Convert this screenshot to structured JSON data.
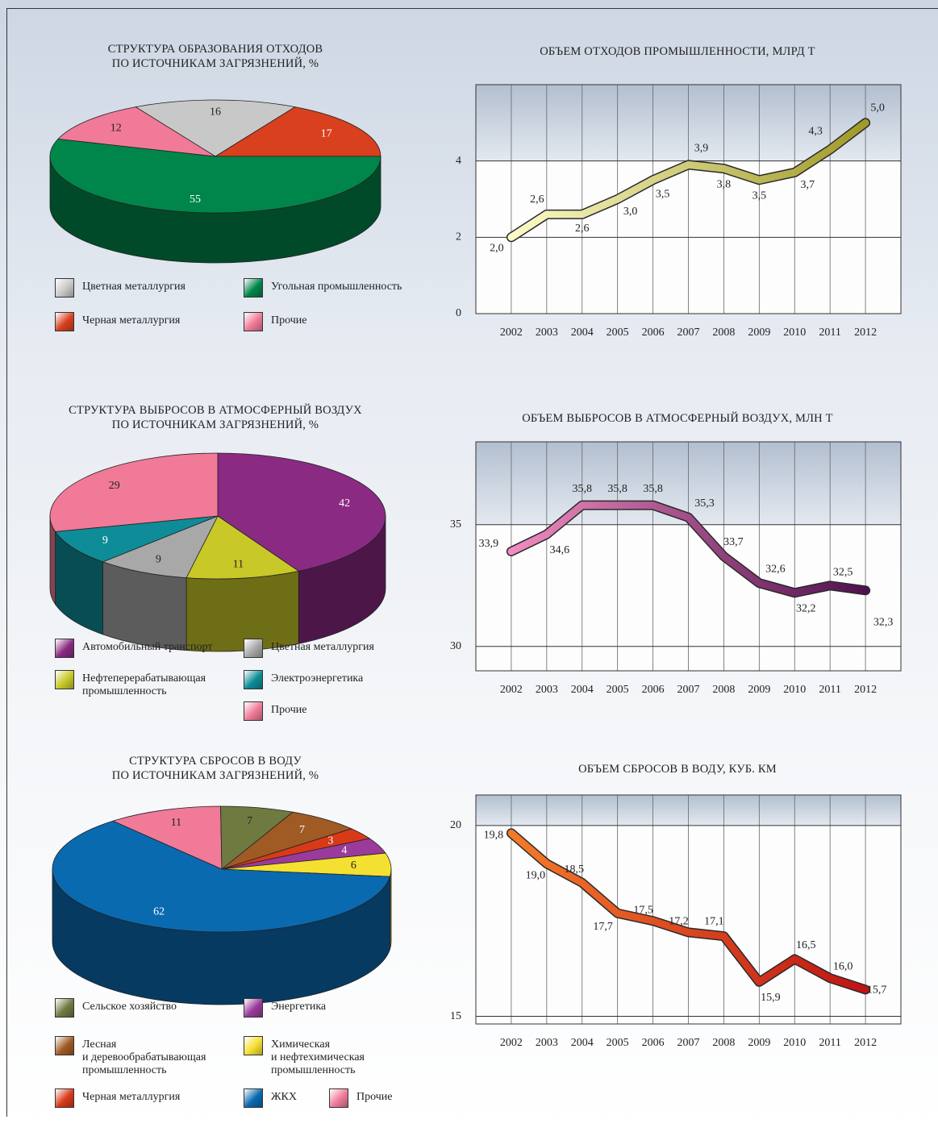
{
  "chart_data": [
    {
      "type": "pie",
      "title": "СТРУКТУРА ОБРАЗОВАНИЯ ОТХОДОВ\nПО ИСТОЧНИКАМ ЗАГРЯЗНЕНИЙ, %",
      "categories": [
        "Цветная металлургия",
        "Черная металлургия",
        "Угольная промышленность",
        "Прочие"
      ],
      "values": [
        16,
        17,
        55,
        12
      ],
      "colors": [
        "#c8c8c8",
        "#d8401e",
        "#00864a",
        "#f07a98"
      ]
    },
    {
      "type": "line",
      "title": "ОБЪЕМ ОТХОДОВ ПРОМЫШЛЕННОСТИ, МЛРД Т",
      "categories": [
        "2002",
        "2003",
        "2004",
        "2005",
        "2006",
        "2007",
        "2008",
        "2009",
        "2010",
        "2011",
        "2012"
      ],
      "values": [
        2.0,
        2.6,
        2.6,
        3.0,
        3.5,
        3.9,
        3.8,
        3.5,
        3.7,
        4.3,
        5.0
      ],
      "value_labels": [
        "2,0",
        "2,6",
        "2,6",
        "3,0",
        "3,5",
        "3,9",
        "3,8",
        "3,5",
        "3,7",
        "4,3",
        "5,0"
      ],
      "line_colors": [
        "#fbfbc8",
        "#a09a28"
      ],
      "ylim": [
        0,
        6
      ],
      "yticks": [
        0,
        2,
        4
      ],
      "grid": true
    },
    {
      "type": "pie",
      "title": "СТРУКТУРА ВЫБРОСОВ В АТМОСФЕРНЫЙ ВОЗДУХ\nПО ИСТОЧНИКАМ ЗАГРЯЗНЕНИЙ, %",
      "categories": [
        "Автомобильный транспорт",
        "Нефтеперерабатывающая\nпромышленность",
        "Цветная металлургия",
        "Электроэнергетика",
        "Прочие"
      ],
      "values": [
        42,
        11,
        9,
        9,
        29
      ],
      "colors": [
        "#8a2a82",
        "#c8c828",
        "#a8a8a8",
        "#0e8c98",
        "#f07a98"
      ]
    },
    {
      "type": "line",
      "title": "ОБЪЕМ ВЫБРОСОВ В АТМОСФЕРНЫЙ ВОЗДУХ, МЛН Т",
      "categories": [
        "2002",
        "2003",
        "2004",
        "2005",
        "2006",
        "2007",
        "2008",
        "2009",
        "2010",
        "2011",
        "2012"
      ],
      "values": [
        33.9,
        34.6,
        35.8,
        35.8,
        35.8,
        35.3,
        33.7,
        32.6,
        32.2,
        32.5,
        32.3
      ],
      "value_labels": [
        "33,9",
        "34,6",
        "35,8",
        "35,8",
        "35,8",
        "35,3",
        "33,7",
        "32,6",
        "32,2",
        "32,5",
        "32,3"
      ],
      "line_colors": [
        "#f08cc0",
        "#50104e"
      ],
      "ylim": [
        29,
        38.4
      ],
      "yticks": [
        30,
        35
      ],
      "grid": true
    },
    {
      "type": "pie",
      "title": "СТРУКТУРА СБРОСОВ В ВОДУ\nПО ИСТОЧНИКАМ ЗАГРЯЗНЕНИЙ, %",
      "categories": [
        "Прочие",
        "Сельское хозяйство",
        "Лесная\nи деревообрабатывающая\nпромышленность",
        "Черная металлургия",
        "Энергетика",
        "Химическая\nи нефтехимическая\nпромышленность",
        "ЖКХ"
      ],
      "values": [
        11,
        7,
        7,
        3,
        4,
        6,
        62
      ],
      "colors": [
        "#f07a98",
        "#6e7a40",
        "#a05a24",
        "#d83a18",
        "#9a3a9a",
        "#f4e030",
        "#0a6ab0"
      ]
    },
    {
      "type": "line",
      "title": "ОБЪЕМ СБРОСОВ В ВОДУ, КУБ. КМ",
      "categories": [
        "2002",
        "2003",
        "2004",
        "2005",
        "2006",
        "2007",
        "2008",
        "2009",
        "2010",
        "2011",
        "2012"
      ],
      "values": [
        19.8,
        19.0,
        18.5,
        17.7,
        17.5,
        17.2,
        17.1,
        15.9,
        16.5,
        16.0,
        15.7
      ],
      "value_labels": [
        "19,8",
        "19,0",
        "18,5",
        "17,7",
        "17,5",
        "17,2",
        "17,1",
        "15,9",
        "16,5",
        "16,0",
        "15,7"
      ],
      "line_colors": [
        "#f47a2a",
        "#c01414"
      ],
      "ylim": [
        14.8,
        20.8
      ],
      "yticks": [
        15,
        20
      ],
      "grid": true
    }
  ]
}
